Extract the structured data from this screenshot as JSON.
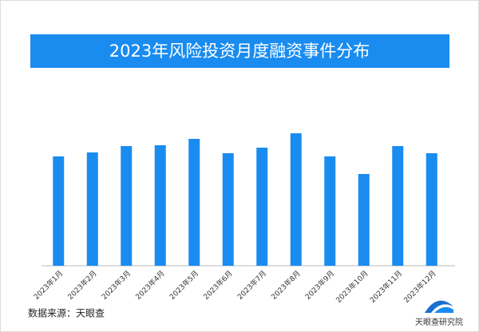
{
  "chart_data": {
    "type": "bar",
    "title": "2023年风险投资月度融资事件分布",
    "categories": [
      "2023年1月",
      "2023年2月",
      "2023年3月",
      "2023年4月",
      "2023年5月",
      "2023年6月",
      "2023年7月",
      "2023年8月",
      "2023年9月",
      "2023年10月",
      "2023年11月",
      "2023年12月"
    ],
    "values": [
      137,
      142,
      150,
      151,
      159,
      141,
      148,
      166,
      137,
      115,
      150,
      141
    ],
    "color": "#1a8cf0",
    "ylim": [
      0,
      250
    ],
    "source": "数据来源：天眼查",
    "logo_text": "天眼查研究院"
  }
}
